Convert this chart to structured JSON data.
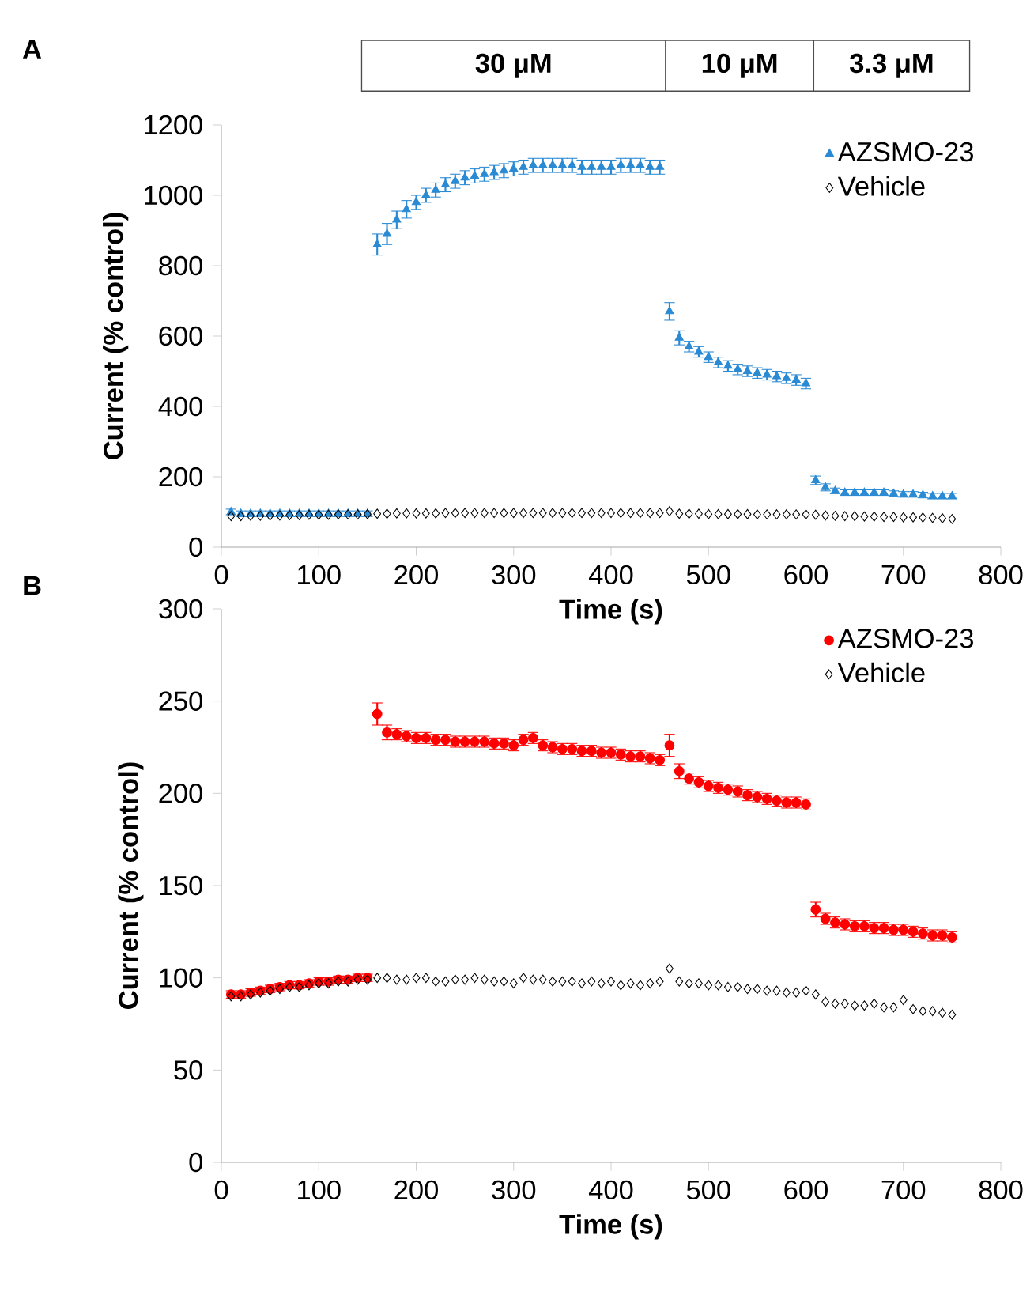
{
  "chart_data": [
    {
      "type": "scatter",
      "title": "A",
      "xlabel": "Time (s)",
      "ylabel": "Current (% control)",
      "legend": "top right",
      "grid": false,
      "xlim": [
        0,
        800
      ],
      "xticks": [
        0,
        100,
        200,
        300,
        400,
        500,
        600,
        700,
        800
      ],
      "ylim": [
        0,
        1200
      ],
      "yticks": [
        0,
        200,
        400,
        600,
        800,
        1000,
        1200
      ],
      "annotations": [
        "30 μM",
        "10 μM",
        "3.3 μM"
      ],
      "x": [
        10,
        20,
        30,
        40,
        50,
        60,
        70,
        80,
        90,
        100,
        110,
        120,
        130,
        140,
        150,
        160,
        170,
        180,
        190,
        200,
        210,
        220,
        230,
        240,
        250,
        260,
        270,
        280,
        290,
        300,
        310,
        320,
        330,
        340,
        350,
        360,
        370,
        380,
        390,
        400,
        410,
        420,
        430,
        440,
        450,
        460,
        470,
        480,
        490,
        500,
        510,
        520,
        530,
        540,
        550,
        560,
        570,
        580,
        590,
        600,
        610,
        620,
        630,
        640,
        650,
        660,
        670,
        680,
        690,
        700,
        710,
        720,
        730,
        740,
        750
      ],
      "series": [
        {
          "name": "AZSMO-23",
          "color": "#2a8ad4",
          "marker": "triangle",
          "values": [
            100,
            95,
            95,
            95,
            95,
            95,
            95,
            95,
            95,
            95,
            95,
            95,
            95,
            95,
            95,
            860,
            890,
            930,
            960,
            980,
            1000,
            1015,
            1030,
            1040,
            1050,
            1055,
            1060,
            1065,
            1070,
            1075,
            1080,
            1085,
            1085,
            1085,
            1085,
            1085,
            1080,
            1080,
            1080,
            1080,
            1085,
            1085,
            1085,
            1080,
            1080,
            670,
            595,
            570,
            555,
            540,
            525,
            515,
            505,
            500,
            495,
            490,
            485,
            480,
            475,
            465,
            190,
            170,
            160,
            155,
            155,
            155,
            155,
            155,
            152,
            150,
            150,
            148,
            145,
            145,
            145
          ],
          "errors": [
            8,
            8,
            8,
            8,
            8,
            8,
            8,
            8,
            8,
            8,
            8,
            8,
            8,
            8,
            8,
            30,
            30,
            25,
            25,
            20,
            20,
            20,
            20,
            20,
            20,
            20,
            20,
            20,
            20,
            20,
            20,
            20,
            20,
            20,
            20,
            20,
            20,
            20,
            20,
            20,
            20,
            20,
            20,
            20,
            20,
            25,
            20,
            15,
            15,
            15,
            15,
            15,
            15,
            15,
            15,
            15,
            15,
            15,
            15,
            15,
            12,
            10,
            8,
            8,
            8,
            8,
            8,
            8,
            8,
            8,
            8,
            8,
            8,
            8,
            8
          ]
        },
        {
          "name": "Vehicle",
          "color": "#000000",
          "marker": "diamond",
          "values": [
            88,
            88,
            89,
            89,
            90,
            90,
            91,
            91,
            92,
            92,
            92,
            93,
            93,
            93,
            94,
            95,
            95,
            96,
            96,
            96,
            96,
            96,
            97,
            97,
            97,
            97,
            97,
            97,
            97,
            97,
            97,
            97,
            97,
            97,
            97,
            97,
            97,
            97,
            97,
            97,
            97,
            97,
            97,
            97,
            97,
            102,
            95,
            95,
            95,
            94,
            94,
            94,
            94,
            94,
            93,
            93,
            93,
            93,
            93,
            93,
            92,
            90,
            89,
            88,
            88,
            87,
            87,
            86,
            86,
            85,
            85,
            84,
            83,
            82,
            80
          ]
        }
      ]
    },
    {
      "type": "scatter",
      "title": "B",
      "xlabel": "Time (s)",
      "ylabel": "Current (% control)",
      "legend": "top right",
      "grid": false,
      "xlim": [
        0,
        800
      ],
      "xticks": [
        0,
        100,
        200,
        300,
        400,
        500,
        600,
        700,
        800
      ],
      "ylim": [
        0,
        300
      ],
      "yticks": [
        0,
        50,
        100,
        150,
        200,
        250,
        300
      ],
      "x": [
        10,
        20,
        30,
        40,
        50,
        60,
        70,
        80,
        90,
        100,
        110,
        120,
        130,
        140,
        150,
        160,
        170,
        180,
        190,
        200,
        210,
        220,
        230,
        240,
        250,
        260,
        270,
        280,
        290,
        300,
        310,
        320,
        330,
        340,
        350,
        360,
        370,
        380,
        390,
        400,
        410,
        420,
        430,
        440,
        450,
        460,
        470,
        480,
        490,
        500,
        510,
        520,
        530,
        540,
        550,
        560,
        570,
        580,
        590,
        600,
        610,
        620,
        630,
        640,
        650,
        660,
        670,
        680,
        690,
        700,
        710,
        720,
        730,
        740,
        750
      ],
      "series": [
        {
          "name": "AZSMO-23",
          "color": "#ff0000",
          "marker": "circle",
          "values": [
            91,
            91,
            92,
            93,
            94,
            95,
            96,
            96,
            97,
            98,
            98,
            99,
            99,
            100,
            100,
            243,
            233,
            232,
            231,
            230,
            230,
            229,
            229,
            228,
            228,
            228,
            228,
            227,
            227,
            226,
            229,
            230,
            226,
            225,
            224,
            224,
            223,
            223,
            222,
            222,
            221,
            220,
            220,
            219,
            218,
            226,
            212,
            208,
            206,
            204,
            203,
            202,
            201,
            199,
            198,
            197,
            196,
            195,
            195,
            194,
            137,
            132,
            130,
            129,
            128,
            128,
            127,
            127,
            126,
            126,
            125,
            124,
            123,
            123,
            122
          ],
          "errors": [
            2,
            2,
            2,
            2,
            2,
            2,
            2,
            2,
            2,
            2,
            2,
            2,
            2,
            2,
            2,
            6,
            4,
            3,
            3,
            3,
            3,
            3,
            3,
            3,
            3,
            3,
            3,
            3,
            3,
            3,
            3,
            3,
            3,
            3,
            3,
            3,
            3,
            3,
            3,
            3,
            3,
            3,
            3,
            3,
            3,
            6,
            4,
            3,
            3,
            3,
            3,
            3,
            3,
            3,
            3,
            3,
            3,
            3,
            3,
            3,
            4,
            3,
            3,
            3,
            3,
            3,
            3,
            3,
            3,
            3,
            3,
            3,
            3,
            3,
            3
          ]
        },
        {
          "name": "Vehicle",
          "color": "#000000",
          "marker": "diamond",
          "values": [
            90,
            90,
            91,
            92,
            93,
            94,
            95,
            95,
            96,
            97,
            97,
            98,
            98,
            99,
            99,
            100,
            100,
            99,
            99,
            100,
            100,
            98,
            98,
            99,
            99,
            100,
            99,
            98,
            98,
            97,
            100,
            99,
            99,
            98,
            98,
            98,
            97,
            98,
            97,
            98,
            96,
            97,
            96,
            97,
            98,
            105,
            98,
            97,
            97,
            96,
            96,
            95,
            95,
            94,
            94,
            93,
            93,
            92,
            92,
            93,
            91,
            87,
            86,
            86,
            85,
            85,
            86,
            84,
            84,
            88,
            83,
            82,
            82,
            81,
            80
          ]
        }
      ]
    }
  ]
}
